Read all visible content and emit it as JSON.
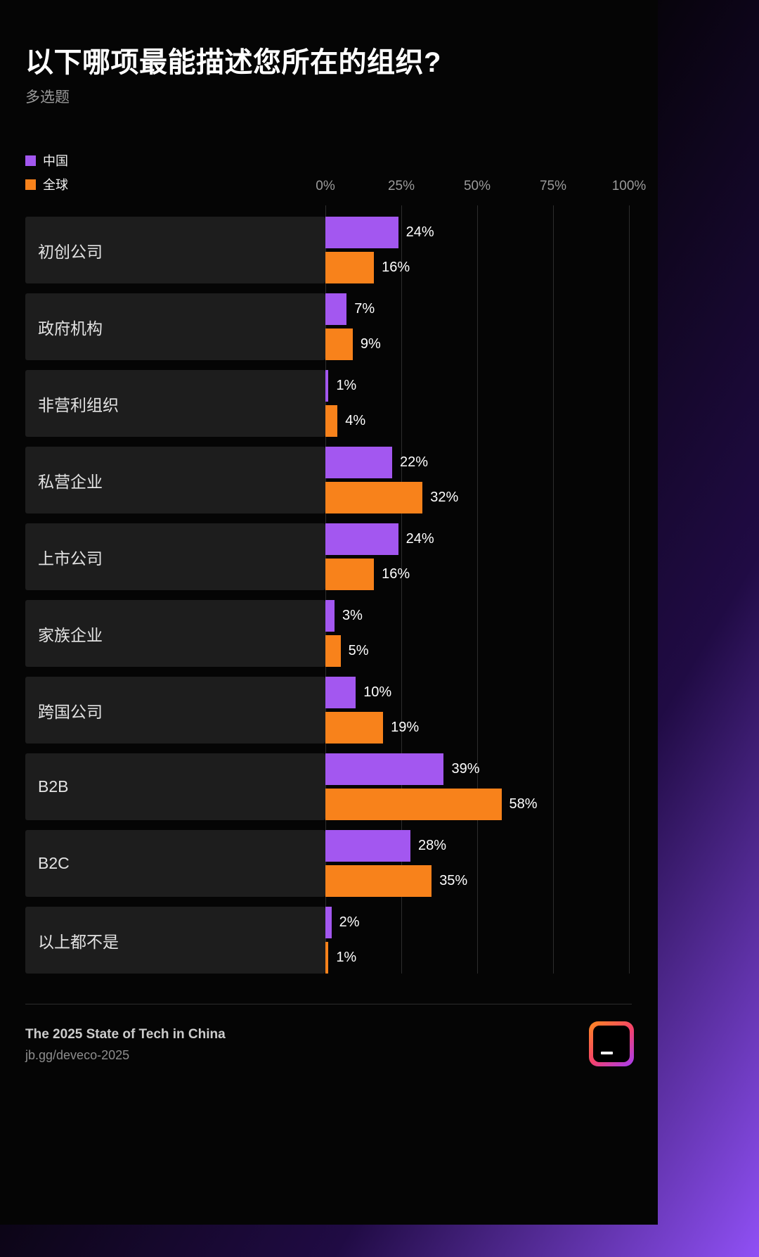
{
  "page": {
    "title": "以下哪项最能描述您所在的组织?",
    "subtitle": "多选题"
  },
  "legend": [
    {
      "label": "中国",
      "color": "#A357F0"
    },
    {
      "label": "全球",
      "color": "#F8821B"
    }
  ],
  "chart_data": {
    "type": "bar",
    "orientation": "horizontal",
    "title": "以下哪项最能描述您所在的组织?",
    "categories": [
      "初创公司",
      "政府机构",
      "非营利组织",
      "私营企业",
      "上市公司",
      "家族企业",
      "跨国公司",
      "B2B",
      "B2C",
      "以上都不是"
    ],
    "series": [
      {
        "name": "中国",
        "color": "#A357F0",
        "values": [
          24,
          7,
          1,
          22,
          24,
          3,
          10,
          39,
          28,
          2
        ]
      },
      {
        "name": "全球",
        "color": "#F8821B",
        "values": [
          16,
          9,
          4,
          32,
          16,
          5,
          19,
          58,
          35,
          1
        ]
      }
    ],
    "x_ticks": [
      "0%",
      "25%",
      "50%",
      "75%",
      "100%"
    ],
    "xlim": [
      0,
      100
    ],
    "value_suffix": "%",
    "grid": "vertical",
    "legend_position": "top-left"
  },
  "footer": {
    "title": "The 2025 State of Tech in China",
    "link": "jb.gg/deveco-2025"
  }
}
